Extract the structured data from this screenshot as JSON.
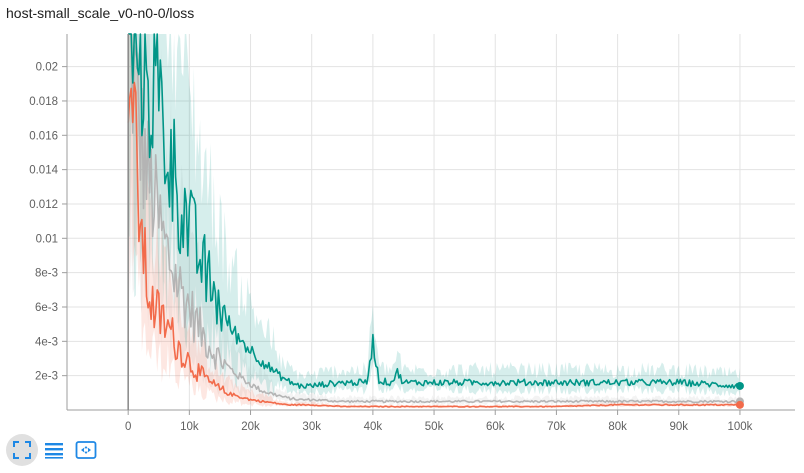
{
  "card": {
    "title": "host-small_scale_v0-n0-0/loss"
  },
  "colors": {
    "teal": "#009587",
    "gray": "#b4b4b4",
    "orange": "#f26b4b",
    "grid": "#e3e3e3",
    "axis": "#9e9e9e",
    "icon": "#1e88e5"
  },
  "toolbar": [
    {
      "icon": "fullscreen-icon",
      "active": true
    },
    {
      "icon": "list-icon",
      "active": false
    },
    {
      "icon": "fit-domain-icon",
      "active": false
    }
  ],
  "chart_data": {
    "type": "line",
    "xlim": [
      -10000,
      109000
    ],
    "ylim": [
      0,
      0.0219
    ],
    "xticks": [
      0,
      10000,
      20000,
      30000,
      40000,
      50000,
      60000,
      70000,
      80000,
      90000,
      100000
    ],
    "xtick_labels": [
      "0",
      "10k",
      "20k",
      "30k",
      "40k",
      "50k",
      "60k",
      "70k",
      "80k",
      "90k",
      "100k"
    ],
    "yticks": [
      0.002,
      0.004,
      0.006,
      0.008,
      0.01,
      0.012,
      0.014,
      0.016,
      0.018,
      0.02
    ],
    "ytick_labels": [
      "2e-3",
      "4e-3",
      "6e-3",
      "8e-3",
      "0.01",
      "0.012",
      "0.014",
      "0.016",
      "0.018",
      "0.02"
    ],
    "grid": true,
    "series": [
      {
        "color": "#b4b4b4",
        "x": [
          0,
          1000,
          2000,
          3000,
          4000,
          5000,
          6000,
          7000,
          8000,
          10000,
          12000,
          14000,
          16000,
          18000,
          20000,
          22000,
          24000,
          26000,
          28000,
          30000,
          35000,
          40000,
          50000,
          60000,
          70000,
          80000,
          90000,
          100000
        ],
        "y": [
          0.022,
          0.019,
          0.016,
          0.014,
          0.0125,
          0.011,
          0.0095,
          0.0085,
          0.0075,
          0.006,
          0.0045,
          0.0034,
          0.0026,
          0.002,
          0.0015,
          0.0011,
          0.0009,
          0.0007,
          0.0006,
          0.0006,
          0.0005,
          0.0005,
          0.0005,
          0.0005,
          0.0005,
          0.0005,
          0.0005,
          0.0005
        ]
      },
      {
        "color": "#f26b4b",
        "x": [
          0,
          1000,
          2000,
          3000,
          4000,
          5000,
          6000,
          7000,
          8000,
          10000,
          12000,
          14000,
          16000,
          18000,
          20000,
          22000,
          24000,
          26000,
          28000,
          30000,
          35000,
          40000,
          50000,
          60000,
          70000,
          80000,
          90000,
          100000
        ],
        "y": [
          0.022,
          0.016,
          0.011,
          0.0075,
          0.006,
          0.0055,
          0.005,
          0.0045,
          0.0038,
          0.0028,
          0.002,
          0.0014,
          0.001,
          0.0008,
          0.0006,
          0.0005,
          0.0004,
          0.0003,
          0.0003,
          0.0003,
          0.0002,
          0.0002,
          0.0002,
          0.0002,
          0.0002,
          0.0003,
          0.0003,
          0.0003
        ]
      },
      {
        "color": "#009587",
        "x": [
          0,
          1000,
          2000,
          3000,
          4000,
          5000,
          6000,
          7000,
          8000,
          10000,
          12000,
          14000,
          16000,
          18000,
          20000,
          22000,
          24000,
          26000,
          28000,
          30000,
          32000,
          35000,
          39000,
          40000,
          41000,
          43000,
          44000,
          45000,
          50000,
          55000,
          60000,
          65000,
          70000,
          75000,
          80000,
          85000,
          90000,
          95000,
          100000
        ],
        "y": [
          0.022,
          0.022,
          0.0215,
          0.02,
          0.019,
          0.018,
          0.016,
          0.0145,
          0.013,
          0.0105,
          0.0085,
          0.0068,
          0.0052,
          0.0042,
          0.0035,
          0.0028,
          0.0022,
          0.0017,
          0.0014,
          0.0014,
          0.0015,
          0.0016,
          0.0016,
          0.004,
          0.0017,
          0.0016,
          0.0022,
          0.0016,
          0.0016,
          0.0016,
          0.0016,
          0.0016,
          0.0016,
          0.0016,
          0.0016,
          0.0016,
          0.0016,
          0.0015,
          0.0014
        ]
      }
    ]
  }
}
